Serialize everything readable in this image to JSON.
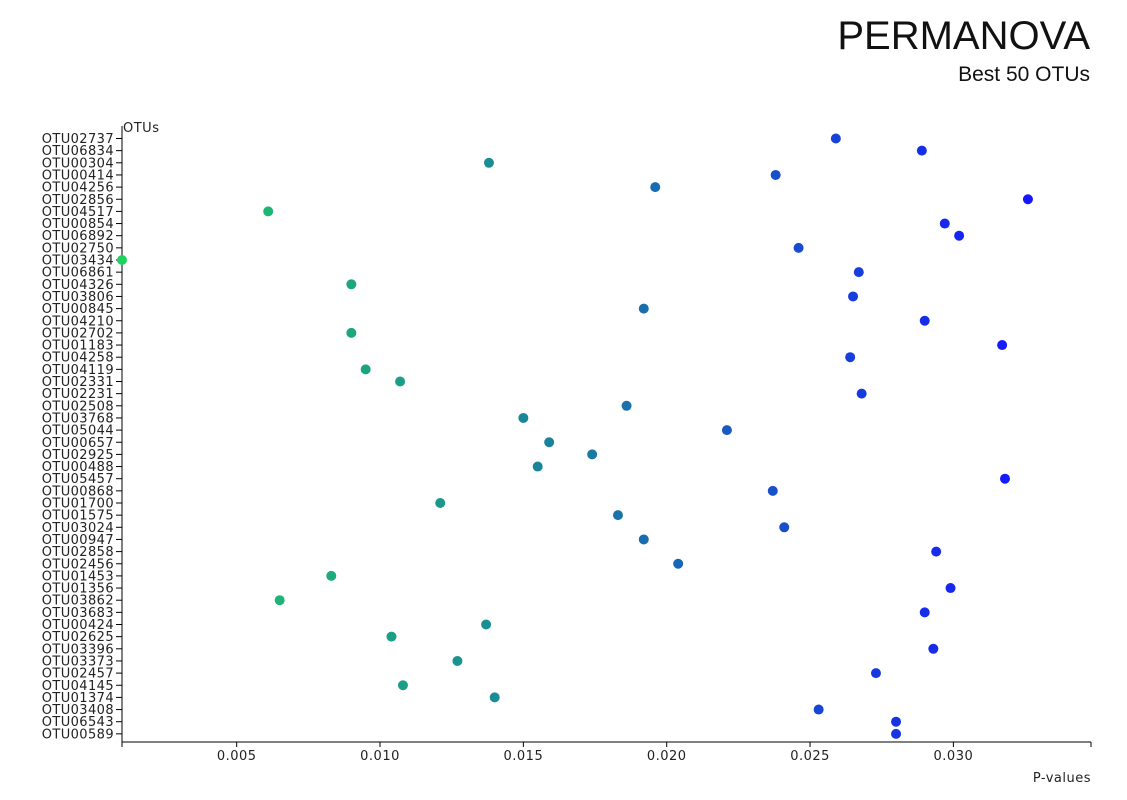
{
  "chart_data": {
    "type": "scatter",
    "title": "PERMANOVA",
    "subtitle": "Best 50 OTUs",
    "ylabel": "OTUs",
    "xlabel": "P-values",
    "xlim": [
      0.001,
      0.0348
    ],
    "xticks": [
      "0.005",
      "0.010",
      "0.015",
      "0.020",
      "0.025",
      "0.030"
    ],
    "grid": false,
    "color_scale": {
      "low": "#1fd15e",
      "mid": "#197ea0",
      "high": "#1616ff"
    },
    "points": [
      {
        "otu": "OTU02737",
        "p": 0.0259
      },
      {
        "otu": "OTU06834",
        "p": 0.0289
      },
      {
        "otu": "OTU00304",
        "p": 0.0138
      },
      {
        "otu": "OTU00414",
        "p": 0.0238
      },
      {
        "otu": "OTU04256",
        "p": 0.0196
      },
      {
        "otu": "OTU02856",
        "p": 0.0326
      },
      {
        "otu": "OTU04517",
        "p": 0.0061
      },
      {
        "otu": "OTU00854",
        "p": 0.0297
      },
      {
        "otu": "OTU06892",
        "p": 0.0302
      },
      {
        "otu": "OTU02750",
        "p": 0.0246
      },
      {
        "otu": "OTU03434",
        "p": 0.001
      },
      {
        "otu": "OTU06861",
        "p": 0.0267
      },
      {
        "otu": "OTU04326",
        "p": 0.009
      },
      {
        "otu": "OTU03806",
        "p": 0.0265
      },
      {
        "otu": "OTU00845",
        "p": 0.0192
      },
      {
        "otu": "OTU04210",
        "p": 0.029
      },
      {
        "otu": "OTU02702",
        "p": 0.009
      },
      {
        "otu": "OTU01183",
        "p": 0.0317
      },
      {
        "otu": "OTU04258",
        "p": 0.0264
      },
      {
        "otu": "OTU04119",
        "p": 0.0095
      },
      {
        "otu": "OTU02331",
        "p": 0.0107
      },
      {
        "otu": "OTU02231",
        "p": 0.0268
      },
      {
        "otu": "OTU02508",
        "p": 0.0186
      },
      {
        "otu": "OTU03768",
        "p": 0.015
      },
      {
        "otu": "OTU05044",
        "p": 0.0221
      },
      {
        "otu": "OTU00657",
        "p": 0.0159
      },
      {
        "otu": "OTU02925",
        "p": 0.0174
      },
      {
        "otu": "OTU00488",
        "p": 0.0155
      },
      {
        "otu": "OTU05457",
        "p": 0.0318
      },
      {
        "otu": "OTU00868",
        "p": 0.0237
      },
      {
        "otu": "OTU01700",
        "p": 0.0121
      },
      {
        "otu": "OTU01575",
        "p": 0.0183
      },
      {
        "otu": "OTU03024",
        "p": 0.0241
      },
      {
        "otu": "OTU00947",
        "p": 0.0192
      },
      {
        "otu": "OTU02858",
        "p": 0.0294
      },
      {
        "otu": "OTU02456",
        "p": 0.0204
      },
      {
        "otu": "OTU01453",
        "p": 0.0083
      },
      {
        "otu": "OTU01356",
        "p": 0.0299
      },
      {
        "otu": "OTU03862",
        "p": 0.0065
      },
      {
        "otu": "OTU03683",
        "p": 0.029
      },
      {
        "otu": "OTU00424",
        "p": 0.0137
      },
      {
        "otu": "OTU02625",
        "p": 0.0104
      },
      {
        "otu": "OTU03396",
        "p": 0.0293
      },
      {
        "otu": "OTU03373",
        "p": 0.0127
      },
      {
        "otu": "OTU02457",
        "p": 0.0273
      },
      {
        "otu": "OTU04145",
        "p": 0.0108
      },
      {
        "otu": "OTU01374",
        "p": 0.014
      },
      {
        "otu": "OTU03408",
        "p": 0.0253
      },
      {
        "otu": "OTU06543",
        "p": 0.028
      },
      {
        "otu": "OTU00589",
        "p": 0.028
      }
    ]
  }
}
